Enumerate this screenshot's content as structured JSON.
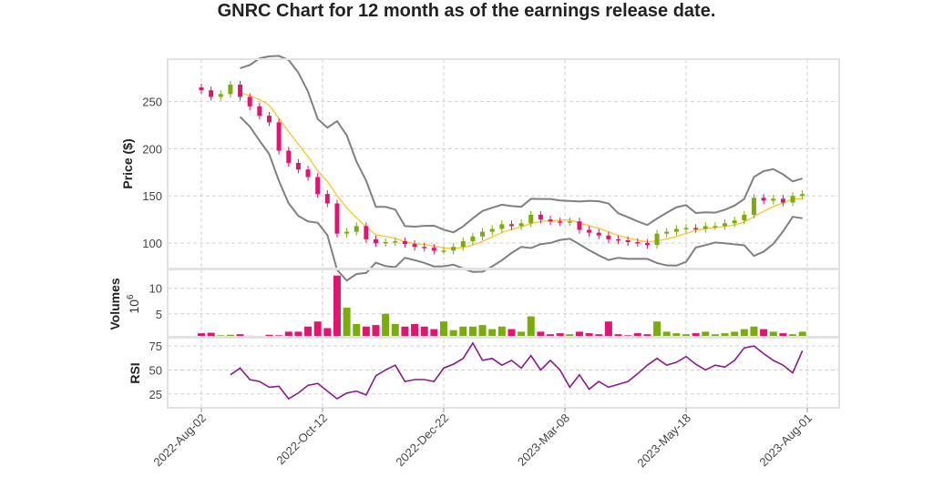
{
  "chart_data": {
    "type": "candlestick",
    "title": "GNRC Chart for 12 month as of the earnings release date.",
    "x_tick_labels": [
      "2022-Aug-02",
      "2022-Oct-12",
      "2022-Dec-22",
      "2023-Mar-08",
      "2023-May-18",
      "2023-Aug-01"
    ],
    "x_tick_days": [
      0,
      50,
      100,
      150,
      200,
      250
    ],
    "days": [
      0,
      4,
      8,
      12,
      16,
      20,
      24,
      28,
      32,
      36,
      40,
      44,
      48,
      52,
      56,
      60,
      64,
      68,
      72,
      76,
      80,
      84,
      88,
      92,
      96,
      100,
      104,
      108,
      112,
      116,
      120,
      124,
      128,
      132,
      136,
      140,
      144,
      148,
      152,
      156,
      160,
      164,
      168,
      172,
      176,
      180,
      184,
      188,
      192,
      196,
      200,
      204,
      208,
      212,
      216,
      220,
      224,
      228,
      232,
      236,
      240,
      244,
      248
    ],
    "close": [
      262,
      255,
      258,
      268,
      255,
      245,
      235,
      228,
      198,
      185,
      178,
      170,
      152,
      142,
      110,
      112,
      118,
      104,
      100,
      101,
      102,
      99,
      96,
      95,
      92,
      92,
      96,
      102,
      107,
      112,
      115,
      120,
      118,
      121,
      130,
      125,
      123,
      122,
      123,
      114,
      111,
      108,
      104,
      103,
      101,
      100,
      98,
      110,
      112,
      115,
      116,
      115,
      118,
      118,
      121,
      124,
      130,
      148,
      145,
      147,
      143,
      150,
      152
    ],
    "volume": [
      1.2,
      1.3,
      0.8,
      0.9,
      1.0,
      0.7,
      0.6,
      0.9,
      0.8,
      1.5,
      1.5,
      2.5,
      3.5,
      2.2,
      12.5,
      6.2,
      3.0,
      2.5,
      2.8,
      5.0,
      3.0,
      2.5,
      3.0,
      2.5,
      2.0,
      3.5,
      1.8,
      2.5,
      2.5,
      2.8,
      2.0,
      2.5,
      2.0,
      1.5,
      4.5,
      1.5,
      1.0,
      1.2,
      1.0,
      1.5,
      1.2,
      1.0,
      3.5,
      1.0,
      0.8,
      1.2,
      1.0,
      3.5,
      1.5,
      1.2,
      1.0,
      1.2,
      1.5,
      1.0,
      1.2,
      1.5,
      2.0,
      2.5,
      2.0,
      1.5,
      1.2,
      1.0,
      1.5
    ],
    "rsi": [
      null,
      null,
      null,
      45,
      52,
      40,
      38,
      32,
      33,
      20,
      26,
      34,
      36,
      28,
      20,
      26,
      28,
      24,
      44,
      50,
      55,
      38,
      40,
      40,
      38,
      52,
      56,
      62,
      78,
      60,
      62,
      55,
      60,
      52,
      65,
      50,
      60,
      50,
      32,
      45,
      30,
      38,
      32,
      35,
      38,
      46,
      55,
      62,
      55,
      58,
      64,
      56,
      50,
      55,
      53,
      60,
      73,
      75,
      67,
      60,
      55,
      47,
      70
    ],
    "price_panel": {
      "ylabel": "Price ($)",
      "yticks": [
        100,
        150,
        200,
        250
      ],
      "ylim": [
        73,
        295
      ]
    },
    "volume_panel": {
      "ylabel": "Volumes",
      "unit_label": "10^6",
      "unit_base": "10",
      "unit_exp": "6",
      "yticks": [
        5,
        10
      ],
      "ylim": [
        0.5,
        13.7
      ]
    },
    "rsi_panel": {
      "ylabel": "RSI",
      "yticks": [
        25,
        50,
        75
      ],
      "ylim": [
        10.6,
        83.6
      ]
    },
    "indicators": [
      "Bollinger Bands (upper/lower)",
      "SMA"
    ],
    "colors": {
      "up": "#7aab0f",
      "down": "#e0156f",
      "band": "#808080",
      "sma": "#ffc425",
      "rsi": "#8b1a8b"
    },
    "grid": true
  }
}
